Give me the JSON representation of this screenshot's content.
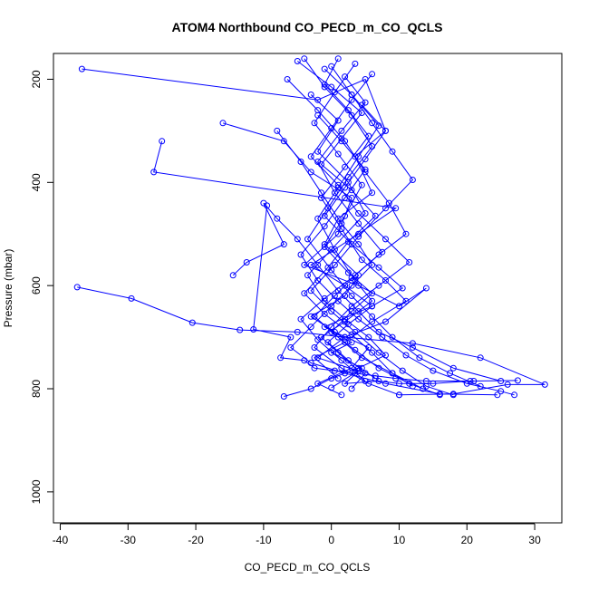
{
  "chart_data": {
    "type": "line",
    "title": "ATOM4 Northbound CO_PECD_m_CO_QCLS",
    "xlabel": "CO_PECD_m_CO_QCLS",
    "ylabel": "Pressure (mbar)",
    "xlim": [
      -41,
      34
    ],
    "ylim": [
      1060,
      150
    ],
    "y_reversed": true,
    "x_ticks": [
      -40,
      -30,
      -20,
      -10,
      0,
      10,
      20,
      30
    ],
    "y_ticks": [
      200,
      400,
      600,
      800,
      1000
    ],
    "grid": false,
    "legend": "none",
    "color": "#0000ff",
    "marker": "open-circle",
    "series": [
      {
        "x": [
          -36.8,
          -2.0,
          5.0,
          8.0,
          3.5,
          6.0,
          1.0,
          -1.0,
          4.0,
          2.0,
          -3.0,
          0.5,
          5.5,
          3.0,
          -2.0,
          1.5
        ],
        "y": [
          180,
          240,
          200,
          300,
          350,
          420,
          470,
          520,
          580,
          620,
          660,
          690,
          720,
          760,
          790,
          812
        ]
      },
      {
        "x": [
          -25.0,
          -26.2,
          9.5,
          4.0,
          -3.0,
          2.0,
          6.0,
          -1.0,
          3.0,
          0.0,
          4.5,
          2.0,
          7.0,
          10.0,
          15.0,
          20.5
        ],
        "y": [
          320,
          380,
          450,
          500,
          560,
          600,
          640,
          680,
          710,
          730,
          760,
          790,
          785,
          790,
          790,
          785
        ]
      },
      {
        "x": [
          -37.5,
          -29.5,
          -20.5,
          -13.5,
          -5.0,
          2.0,
          12.0,
          22.0,
          31.5,
          26.0,
          18.0,
          10.0
        ],
        "y": [
          603,
          625,
          672,
          686,
          690,
          700,
          712,
          740,
          792,
          792,
          810,
          812
        ]
      },
      {
        "x": [
          -16.0,
          -7.0,
          -3.0,
          3.0,
          1.0,
          -4.0,
          4.0,
          10.0,
          14.0,
          8.0,
          2.0,
          -2.0,
          5.0,
          3.0
        ],
        "y": [
          285,
          320,
          380,
          430,
          500,
          560,
          600,
          640,
          605,
          670,
          700,
          740,
          770,
          800
        ]
      },
      {
        "x": [
          -14.5,
          -12.5,
          -7.0,
          -10.0,
          -8.0,
          -5.0,
          -2.0,
          1.0,
          4.0,
          7.0,
          12.0,
          18.0,
          25.0
        ],
        "y": [
          580,
          555,
          520,
          440,
          470,
          510,
          560,
          610,
          650,
          690,
          720,
          760,
          785
        ]
      },
      {
        "x": [
          -9.5,
          -11.5,
          -6.0,
          -7.5,
          -4.0,
          -2.5,
          0.5,
          3.5,
          6.5,
          9.5,
          14.0,
          21.0,
          27.5
        ],
        "y": [
          445,
          685,
          700,
          740,
          745,
          760,
          765,
          770,
          775,
          780,
          785,
          785,
          784
        ]
      },
      {
        "x": [
          -8.0,
          -4.5,
          -1.5,
          1.5,
          4.0,
          6.0,
          3.0,
          0.0,
          -3.0,
          -6.0,
          -3.0,
          2.0,
          8.0,
          16.0,
          24.5
        ],
        "y": [
          300,
          360,
          420,
          480,
          520,
          560,
          600,
          640,
          680,
          720,
          750,
          770,
          790,
          810,
          812
        ]
      },
      {
        "x": [
          -6.5,
          -2.0,
          2.0,
          5.0,
          8.5,
          11.0,
          7.0,
          3.5,
          0.5,
          -2.5,
          1.0,
          4.5,
          9.0,
          13.5
        ],
        "y": [
          200,
          260,
          320,
          380,
          440,
          500,
          540,
          580,
          620,
          660,
          700,
          740,
          770,
          800
        ]
      },
      {
        "x": [
          -5.0,
          0.0,
          4.5,
          1.5,
          -1.5,
          3.0,
          6.5,
          2.5,
          -0.5,
          -4.0,
          -1.0,
          3.0,
          6.0,
          9.0,
          12.0
        ],
        "y": [
          165,
          215,
          265,
          315,
          365,
          415,
          465,
          515,
          565,
          615,
          655,
          695,
          730,
          770,
          795
        ]
      },
      {
        "x": [
          -3.0,
          1.0,
          -2.0,
          2.5,
          5.0,
          0.0,
          -3.5,
          -1.0,
          2.0,
          5.5,
          8.0,
          4.0,
          0.0,
          -3.0,
          -7.0
        ],
        "y": [
          230,
          280,
          340,
          400,
          460,
          530,
          580,
          630,
          665,
          700,
          735,
          760,
          780,
          800,
          815
        ]
      },
      {
        "x": [
          -1.0,
          3.0,
          7.0,
          4.0,
          1.0,
          -2.0,
          0.5,
          3.5,
          6.0,
          2.0,
          -1.5,
          1.0,
          4.0,
          0.0
        ],
        "y": [
          180,
          230,
          290,
          350,
          410,
          470,
          530,
          590,
          630,
          670,
          700,
          730,
          765,
          798
        ]
      },
      {
        "x": [
          1.0,
          -1.0,
          2.5,
          5.5,
          2.0,
          -1.5,
          1.5,
          4.5,
          8.0,
          11.0,
          6.0,
          2.0,
          -2.5,
          1.0
        ],
        "y": [
          160,
          210,
          260,
          310,
          370,
          430,
          490,
          550,
          590,
          630,
          670,
          710,
          740,
          780
        ]
      },
      {
        "x": [
          2.0,
          5.0,
          1.5,
          -2.0,
          0.5,
          4.0,
          7.5,
          3.0,
          -1.0,
          -4.5,
          -2.0,
          1.5,
          5.0
        ],
        "y": [
          195,
          245,
          300,
          360,
          420,
          480,
          535,
          585,
          625,
          665,
          705,
          745,
          785
        ]
      },
      {
        "x": [
          3.5,
          0.5,
          -2.5,
          1.0,
          4.5,
          2.0,
          -1.0,
          2.5,
          6.0,
          3.0,
          0.0,
          3.5,
          7.0,
          11.5,
          16.0
        ],
        "y": [
          170,
          225,
          285,
          345,
          405,
          465,
          525,
          575,
          615,
          650,
          690,
          725,
          760,
          790,
          812
        ]
      },
      {
        "x": [
          4.5,
          8.0,
          5.0,
          2.0,
          -1.0,
          3.0,
          7.0,
          10.5,
          6.0,
          2.5,
          -0.5,
          2.5,
          6.5
        ],
        "y": [
          250,
          300,
          355,
          410,
          465,
          520,
          565,
          605,
          640,
          675,
          710,
          745,
          780
        ]
      },
      {
        "x": [
          -4.0,
          -1.0,
          3.0,
          6.0,
          2.5,
          -0.5,
          -3.5,
          0.0,
          3.0,
          6.0,
          9.0,
          13.0,
          17.5,
          22.0
        ],
        "y": [
          160,
          215,
          270,
          330,
          390,
          450,
          510,
          570,
          620,
          660,
          700,
          740,
          770,
          795
        ]
      },
      {
        "x": [
          6.0,
          3.0,
          0.0,
          -3.0,
          1.0,
          4.0,
          8.0,
          11.5,
          7.0,
          3.0,
          0.0,
          -2.5,
          1.5,
          5.5,
          10.0
        ],
        "y": [
          190,
          240,
          295,
          350,
          405,
          460,
          510,
          555,
          600,
          640,
          680,
          720,
          760,
          790,
          812
        ]
      },
      {
        "x": [
          -2.0,
          1.5,
          5.0,
          2.0,
          -1.0,
          -4.5,
          -2.0,
          1.0,
          4.0,
          7.5,
          11.0,
          15.0,
          20.0,
          25.0,
          27.0
        ],
        "y": [
          270,
          320,
          375,
          430,
          485,
          540,
          590,
          630,
          665,
          700,
          735,
          765,
          790,
          805,
          812
        ]
      },
      {
        "x": [
          0.0,
          3.0,
          6.0,
          9.0,
          12.0,
          8.0,
          4.0,
          0.5,
          -3.0,
          0.0,
          3.5,
          7.0,
          10.5,
          14.0,
          18.0
        ],
        "y": [
          175,
          230,
          285,
          340,
          395,
          450,
          505,
          560,
          610,
          650,
          690,
          730,
          765,
          795,
          812
        ]
      }
    ]
  }
}
